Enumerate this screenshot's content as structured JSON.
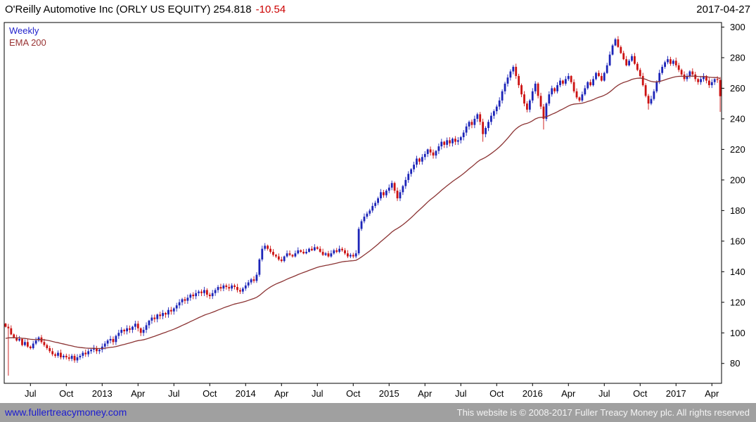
{
  "header": {
    "instrument_name": "O'Reilly Automotive Inc (ORLY US EQUITY)",
    "last_price": "254.818",
    "change": "-10.54",
    "date": "2017-04-27"
  },
  "legend": {
    "interval": "Weekly",
    "overlay": "EMA 200"
  },
  "footer": {
    "link": "www.fullertreacymoney.com",
    "copyright": "This website is © 2008-2017 Fuller Treacy Money plc. All rights reserved"
  },
  "chart_data": {
    "type": "candlestick",
    "title": "O'Reilly Automotive Inc (ORLY US EQUITY)",
    "interval": "Weekly",
    "legend": [
      "Weekly",
      "EMA 200"
    ],
    "legend_position": "top-left",
    "grid": false,
    "ylim": [
      67,
      303
    ],
    "yticks": [
      80,
      100,
      120,
      140,
      160,
      180,
      200,
      220,
      240,
      260,
      280,
      300
    ],
    "xticks": [
      {
        "label": "Jul",
        "week": 9
      },
      {
        "label": "Oct",
        "week": 22
      },
      {
        "label": "2013",
        "week": 35
      },
      {
        "label": "Apr",
        "week": 48
      },
      {
        "label": "Jul",
        "week": 61
      },
      {
        "label": "Oct",
        "week": 74
      },
      {
        "label": "2014",
        "week": 87
      },
      {
        "label": "Apr",
        "week": 100
      },
      {
        "label": "Jul",
        "week": 113
      },
      {
        "label": "Oct",
        "week": 126
      },
      {
        "label": "2015",
        "week": 139
      },
      {
        "label": "Apr",
        "week": 152
      },
      {
        "label": "Jul",
        "week": 165
      },
      {
        "label": "Oct",
        "week": 178
      },
      {
        "label": "2016",
        "week": 191
      },
      {
        "label": "Apr",
        "week": 204
      },
      {
        "label": "Jul",
        "week": 217
      },
      {
        "label": "Oct",
        "week": 230
      },
      {
        "label": "2017",
        "week": 243
      },
      {
        "label": "Apr",
        "week": 256
      }
    ],
    "weekly_closes": [
      104,
      103,
      99,
      97,
      95,
      96,
      92,
      94,
      91,
      90,
      93,
      95,
      97,
      94,
      92,
      90,
      88,
      86,
      85,
      87,
      84,
      85,
      84,
      83,
      85,
      82,
      84,
      85,
      87,
      86,
      88,
      89,
      90,
      88,
      89,
      91,
      93,
      95,
      96,
      94,
      98,
      100,
      102,
      101,
      103,
      102,
      104,
      106,
      103,
      100,
      102,
      105,
      108,
      110,
      109,
      112,
      111,
      113,
      112,
      115,
      114,
      116,
      118,
      120,
      122,
      121,
      123,
      125,
      124,
      126,
      127,
      126,
      128,
      125,
      124,
      126,
      128,
      130,
      129,
      131,
      130,
      129,
      131,
      130,
      128,
      127,
      129,
      131,
      133,
      135,
      134,
      138,
      148,
      155,
      157,
      155,
      153,
      151,
      150,
      148,
      147,
      150,
      152,
      151,
      150,
      152,
      154,
      153,
      152,
      153,
      155,
      154,
      156,
      155,
      153,
      151,
      152,
      150,
      152,
      154,
      153,
      155,
      154,
      152,
      150,
      151,
      150,
      152,
      168,
      173,
      176,
      178,
      180,
      183,
      185,
      188,
      192,
      190,
      193,
      195,
      198,
      193,
      188,
      192,
      196,
      200,
      204,
      207,
      210,
      214,
      212,
      215,
      217,
      220,
      218,
      216,
      219,
      222,
      225,
      223,
      226,
      224,
      227,
      225,
      226,
      228,
      231,
      235,
      238,
      236,
      240,
      243,
      238,
      230,
      234,
      238,
      242,
      245,
      248,
      252,
      258,
      263,
      267,
      271,
      274,
      268,
      262,
      256,
      250,
      246,
      252,
      258,
      263,
      255,
      248,
      240,
      250,
      256,
      260,
      258,
      262,
      265,
      263,
      266,
      268,
      264,
      258,
      254,
      252,
      256,
      260,
      264,
      262,
      266,
      270,
      268,
      265,
      270,
      275,
      282,
      288,
      292,
      287,
      283,
      279,
      275,
      278,
      281,
      276,
      272,
      268,
      262,
      255,
      250,
      253,
      258,
      264,
      270,
      274,
      277,
      279,
      276,
      278,
      275,
      272,
      269,
      266,
      268,
      271,
      269,
      266,
      264,
      266,
      268,
      265,
      262,
      264,
      266,
      265.4,
      254.8
    ],
    "wick_lows": {
      "1": 72,
      "173": 225,
      "195": 233,
      "233": 246,
      "259": 244.5
    },
    "wick_highs": {
      "221": 293
    },
    "ema_period": 40,
    "ema_seed": 96,
    "up_color": "#1c24b8",
    "down_color": "#cc1111",
    "ema_color": "#8b3333",
    "axis_color": "#000000"
  }
}
